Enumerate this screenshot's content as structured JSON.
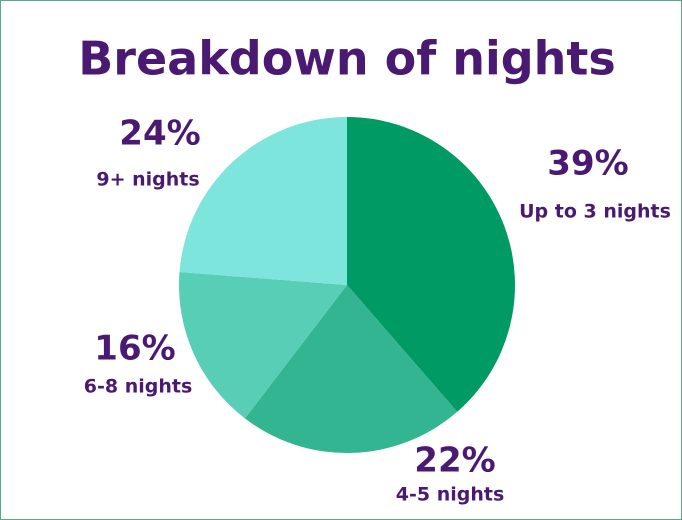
{
  "chart_data": {
    "type": "pie",
    "title": "Breakdown of nights",
    "categories": [
      "Up to 3 nights",
      "4-5 nights",
      "6-8 nights",
      "9+ nights"
    ],
    "values": [
      39,
      22,
      16,
      24
    ],
    "value_labels": [
      "39%",
      "22%",
      "16%",
      "24%"
    ],
    "colors": [
      "#009a64",
      "#33b592",
      "#58ceb7",
      "#7de5dc"
    ]
  }
}
